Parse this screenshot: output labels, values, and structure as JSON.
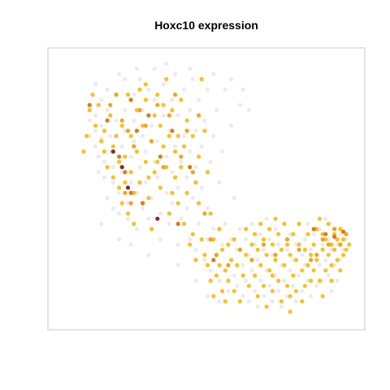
{
  "chart_data": {
    "type": "scatter",
    "title": "Hoxc10 expression",
    "xlabel": "",
    "ylabel": "",
    "axes_shown": false,
    "grid": false,
    "legend": "none",
    "xlim": [
      0,
      100
    ],
    "ylim": [
      0,
      100
    ],
    "colors": {
      "none": "#ebebeb",
      "low": "#fcbf20",
      "mid": "#f5a21c",
      "high": "#e2781a",
      "max": "#8b2a2a",
      "frame": "#c8c8c8"
    },
    "grey_points": [
      [
        10,
        81
      ],
      [
        10,
        76
      ],
      [
        10,
        70
      ],
      [
        12,
        78
      ],
      [
        12,
        72
      ],
      [
        12,
        66
      ],
      [
        13,
        62
      ],
      [
        13,
        56
      ],
      [
        14,
        84
      ],
      [
        14,
        74
      ],
      [
        14,
        69
      ],
      [
        15,
        60
      ],
      [
        15,
        54
      ],
      [
        16,
        88
      ],
      [
        16,
        80
      ],
      [
        16,
        46
      ],
      [
        17,
        70
      ],
      [
        17,
        64
      ],
      [
        18,
        58
      ],
      [
        18,
        52
      ],
      [
        18,
        42
      ],
      [
        19,
        76
      ],
      [
        19,
        86
      ],
      [
        20,
        48
      ],
      [
        20,
        40
      ],
      [
        21,
        66
      ],
      [
        21,
        56
      ],
      [
        22,
        92
      ],
      [
        22,
        80
      ],
      [
        22,
        72
      ],
      [
        23,
        44
      ],
      [
        23,
        38
      ],
      [
        24,
        62
      ],
      [
        24,
        52
      ],
      [
        25,
        86
      ],
      [
        25,
        76
      ],
      [
        25,
        68
      ],
      [
        26,
        48
      ],
      [
        26,
        34
      ],
      [
        27,
        92
      ],
      [
        27,
        58
      ],
      [
        28,
        80
      ],
      [
        28,
        70
      ],
      [
        28,
        42
      ],
      [
        29,
        64
      ],
      [
        29,
        52
      ],
      [
        30,
        88
      ],
      [
        30,
        38
      ],
      [
        31,
        74
      ],
      [
        31,
        46
      ],
      [
        32,
        96
      ],
      [
        32,
        84
      ],
      [
        32,
        60
      ],
      [
        33,
        68
      ],
      [
        33,
        54
      ],
      [
        34,
        40
      ],
      [
        34,
        30
      ],
      [
        35,
        90
      ],
      [
        35,
        78
      ],
      [
        36,
        62
      ],
      [
        36,
        48
      ],
      [
        37,
        72
      ],
      [
        37,
        36
      ],
      [
        38,
        84
      ],
      [
        38,
        56
      ],
      [
        38,
        44
      ],
      [
        39,
        94
      ],
      [
        39,
        66
      ],
      [
        40,
        78
      ],
      [
        40,
        50
      ],
      [
        40,
        28
      ],
      [
        41,
        60
      ],
      [
        41,
        38
      ],
      [
        42,
        88
      ],
      [
        42,
        70
      ],
      [
        43,
        54
      ],
      [
        43,
        42
      ],
      [
        44,
        80
      ],
      [
        44,
        64
      ],
      [
        44,
        30
      ],
      [
        45,
        92
      ],
      [
        45,
        46
      ],
      [
        46,
        72
      ],
      [
        46,
        58
      ],
      [
        46,
        26
      ],
      [
        47,
        84
      ],
      [
        47,
        36
      ],
      [
        48,
        66
      ],
      [
        48,
        50
      ],
      [
        49,
        76
      ],
      [
        49,
        22
      ],
      [
        50,
        88
      ],
      [
        50,
        42
      ],
      [
        50,
        30
      ],
      [
        51,
        60
      ],
      [
        51,
        18
      ],
      [
        52,
        70
      ],
      [
        52,
        34
      ],
      [
        53,
        80
      ],
      [
        53,
        24
      ],
      [
        54,
        52
      ],
      [
        54,
        14
      ],
      [
        55,
        64
      ],
      [
        55,
        28
      ],
      [
        56,
        88
      ],
      [
        56,
        36
      ],
      [
        57,
        20
      ],
      [
        57,
        10
      ],
      [
        58,
        74
      ],
      [
        58,
        30
      ],
      [
        59,
        46
      ],
      [
        59,
        16
      ],
      [
        60,
        26
      ],
      [
        60,
        12
      ],
      [
        61,
        82
      ],
      [
        61,
        34
      ],
      [
        62,
        20
      ],
      [
        62,
        8
      ],
      [
        63,
        30
      ],
      [
        63,
        14
      ],
      [
        64,
        24
      ],
      [
        64,
        6
      ],
      [
        65,
        36
      ],
      [
        65,
        18
      ],
      [
        66,
        28
      ],
      [
        66,
        10
      ],
      [
        67,
        22
      ],
      [
        67,
        4
      ],
      [
        68,
        32
      ],
      [
        68,
        14
      ],
      [
        69,
        26
      ],
      [
        69,
        8
      ],
      [
        70,
        38
      ],
      [
        70,
        18
      ],
      [
        71,
        30
      ],
      [
        71,
        12
      ],
      [
        72,
        24
      ],
      [
        72,
        6
      ],
      [
        73,
        34
      ],
      [
        73,
        16
      ],
      [
        74,
        28
      ],
      [
        74,
        10
      ],
      [
        75,
        20
      ],
      [
        75,
        4
      ],
      [
        76,
        36
      ],
      [
        76,
        14
      ],
      [
        77,
        26
      ],
      [
        77,
        8
      ],
      [
        78,
        32
      ],
      [
        78,
        18
      ],
      [
        79,
        22
      ],
      [
        79,
        12
      ],
      [
        80,
        28
      ],
      [
        80,
        6
      ],
      [
        81,
        36
      ],
      [
        81,
        16
      ],
      [
        82,
        24
      ],
      [
        82,
        10
      ],
      [
        83,
        30
      ],
      [
        83,
        20
      ],
      [
        84,
        36
      ],
      [
        84,
        14
      ],
      [
        85,
        26
      ],
      [
        85,
        8
      ],
      [
        86,
        32
      ],
      [
        86,
        18
      ],
      [
        87,
        24
      ],
      [
        87,
        12
      ],
      [
        88,
        34
      ],
      [
        88,
        20
      ],
      [
        89,
        28
      ],
      [
        89,
        14
      ],
      [
        90,
        38
      ],
      [
        90,
        22
      ],
      [
        91,
        30
      ],
      [
        91,
        16
      ],
      [
        92,
        26
      ],
      [
        92,
        10
      ],
      [
        93,
        34
      ],
      [
        93,
        20
      ],
      [
        94,
        28
      ],
      [
        94,
        14
      ],
      [
        95,
        22
      ],
      [
        95,
        32
      ],
      [
        96,
        26
      ],
      [
        97,
        30
      ],
      [
        12,
        90
      ],
      [
        20,
        94
      ],
      [
        26,
        96
      ],
      [
        36,
        98
      ],
      [
        44,
        96
      ],
      [
        52,
        94
      ],
      [
        58,
        92
      ],
      [
        62,
        88
      ],
      [
        64,
        80
      ],
      [
        20,
        30
      ],
      [
        24,
        28
      ],
      [
        30,
        24
      ],
      [
        14,
        36
      ],
      [
        40,
        20
      ],
      [
        46,
        14
      ],
      [
        50,
        8
      ],
      [
        54,
        6
      ]
    ],
    "low_points": [
      [
        10,
        80
      ],
      [
        8,
        64
      ],
      [
        9,
        70
      ],
      [
        11,
        86
      ],
      [
        12,
        74
      ],
      [
        13,
        82
      ],
      [
        14,
        68
      ],
      [
        15,
        72
      ],
      [
        15,
        64
      ],
      [
        16,
        58
      ],
      [
        17,
        78
      ],
      [
        18,
        66
      ],
      [
        18,
        54
      ],
      [
        19,
        70
      ],
      [
        20,
        60
      ],
      [
        20,
        50
      ],
      [
        21,
        74
      ],
      [
        21,
        44
      ],
      [
        22,
        62
      ],
      [
        22,
        52
      ],
      [
        23,
        86
      ],
      [
        23,
        40
      ],
      [
        24,
        70
      ],
      [
        24,
        56
      ],
      [
        25,
        48
      ],
      [
        25,
        36
      ],
      [
        26,
        80
      ],
      [
        26,
        64
      ],
      [
        27,
        88
      ],
      [
        27,
        52
      ],
      [
        28,
        74
      ],
      [
        28,
        44
      ],
      [
        29,
        84
      ],
      [
        29,
        60
      ],
      [
        29,
        90
      ],
      [
        30,
        54
      ],
      [
        30,
        46
      ],
      [
        31,
        68
      ],
      [
        31,
        34
      ],
      [
        32,
        78
      ],
      [
        32,
        56
      ],
      [
        33,
        60
      ],
      [
        33,
        86
      ],
      [
        34,
        74
      ],
      [
        34,
        50
      ],
      [
        35,
        82
      ],
      [
        35,
        66
      ],
      [
        36,
        92
      ],
      [
        36,
        58
      ],
      [
        37,
        70
      ],
      [
        37,
        40
      ],
      [
        38,
        80
      ],
      [
        38,
        48
      ],
      [
        39,
        64
      ],
      [
        39,
        54
      ],
      [
        40,
        70
      ],
      [
        40,
        44
      ],
      [
        41,
        84
      ],
      [
        41,
        58
      ],
      [
        42,
        66
      ],
      [
        42,
        36
      ],
      [
        43,
        76
      ],
      [
        43,
        48
      ],
      [
        44,
        58
      ],
      [
        44,
        28
      ],
      [
        45,
        70
      ],
      [
        45,
        32
      ],
      [
        46,
        52
      ],
      [
        46,
        22
      ],
      [
        47,
        62
      ],
      [
        47,
        44
      ],
      [
        48,
        92
      ],
      [
        48,
        30
      ],
      [
        49,
        72
      ],
      [
        49,
        24
      ],
      [
        50,
        56
      ],
      [
        50,
        20
      ],
      [
        51,
        40
      ],
      [
        51,
        14
      ],
      [
        52,
        30
      ],
      [
        52,
        8
      ],
      [
        53,
        24
      ],
      [
        53,
        16
      ],
      [
        54,
        34
      ],
      [
        54,
        20
      ],
      [
        55,
        26
      ],
      [
        55,
        10
      ],
      [
        56,
        18
      ],
      [
        56,
        6
      ],
      [
        57,
        28
      ],
      [
        57,
        14
      ],
      [
        58,
        22
      ],
      [
        59,
        30
      ],
      [
        59,
        10
      ],
      [
        60,
        20
      ],
      [
        61,
        26
      ],
      [
        61,
        6
      ],
      [
        62,
        16
      ],
      [
        63,
        24
      ],
      [
        63,
        34
      ],
      [
        64,
        12
      ],
      [
        65,
        28
      ],
      [
        65,
        22
      ],
      [
        66,
        32
      ],
      [
        66,
        16
      ],
      [
        67,
        8
      ],
      [
        67,
        26
      ],
      [
        68,
        20
      ],
      [
        68,
        36
      ],
      [
        69,
        12
      ],
      [
        69,
        30
      ],
      [
        70,
        24
      ],
      [
        70,
        4
      ],
      [
        71,
        18
      ],
      [
        71,
        34
      ],
      [
        72,
        10
      ],
      [
        72,
        28
      ],
      [
        73,
        22
      ],
      [
        73,
        38
      ],
      [
        74,
        14
      ],
      [
        74,
        32
      ],
      [
        75,
        26
      ],
      [
        75,
        6
      ],
      [
        76,
        20
      ],
      [
        76,
        36
      ],
      [
        77,
        12
      ],
      [
        77,
        28
      ],
      [
        78,
        24
      ],
      [
        78,
        2
      ],
      [
        79,
        16
      ],
      [
        79,
        32
      ],
      [
        80,
        22
      ],
      [
        80,
        10
      ],
      [
        81,
        28
      ],
      [
        81,
        36
      ],
      [
        82,
        18
      ],
      [
        82,
        6
      ],
      [
        83,
        26
      ],
      [
        83,
        12
      ],
      [
        84,
        20
      ],
      [
        84,
        32
      ],
      [
        85,
        14
      ],
      [
        85,
        24
      ],
      [
        86,
        28
      ],
      [
        86,
        18
      ],
      [
        87,
        34
      ],
      [
        87,
        22
      ],
      [
        88,
        38
      ],
      [
        88,
        14
      ],
      [
        89,
        26
      ],
      [
        89,
        32
      ],
      [
        90,
        30
      ],
      [
        90,
        18
      ],
      [
        91,
        36
      ],
      [
        91,
        24
      ],
      [
        92,
        28
      ],
      [
        92,
        14
      ],
      [
        93,
        32
      ],
      [
        93,
        26
      ],
      [
        94,
        30
      ],
      [
        94,
        22
      ],
      [
        95,
        28
      ],
      [
        95,
        34
      ],
      [
        96,
        24
      ],
      [
        96,
        30
      ],
      [
        97,
        26
      ],
      [
        98,
        28
      ],
      [
        89,
        8
      ],
      [
        92,
        20
      ],
      [
        95,
        18
      ],
      [
        72,
        16
      ],
      [
        78,
        8
      ]
    ],
    "mid_points": [
      [
        17,
        82
      ],
      [
        19,
        86
      ],
      [
        21,
        76
      ],
      [
        23,
        72
      ],
      [
        25,
        66
      ],
      [
        27,
        80
      ],
      [
        29,
        74
      ],
      [
        31,
        68
      ],
      [
        33,
        82
      ],
      [
        35,
        58
      ],
      [
        37,
        78
      ],
      [
        39,
        86
      ],
      [
        41,
        62
      ],
      [
        43,
        72
      ],
      [
        45,
        56
      ],
      [
        47,
        78
      ],
      [
        49,
        40
      ],
      [
        51,
        30
      ],
      [
        53,
        24
      ],
      [
        57,
        20
      ],
      [
        61,
        26
      ],
      [
        65,
        22
      ],
      [
        69,
        28
      ],
      [
        73,
        24
      ],
      [
        77,
        30
      ],
      [
        81,
        26
      ],
      [
        85,
        22
      ],
      [
        89,
        30
      ],
      [
        93,
        34
      ],
      [
        95,
        28
      ],
      [
        97,
        32
      ],
      [
        91,
        28
      ],
      [
        87,
        24
      ],
      [
        24,
        44
      ],
      [
        22,
        48
      ]
    ],
    "high_points": [
      [
        10,
        82
      ],
      [
        16,
        76
      ],
      [
        20,
        62
      ],
      [
        24,
        84
      ],
      [
        26,
        72
      ],
      [
        22,
        56
      ],
      [
        24,
        48
      ],
      [
        28,
        44
      ],
      [
        30,
        78
      ],
      [
        34,
        62
      ],
      [
        38,
        72
      ],
      [
        44,
        58
      ],
      [
        40,
        36
      ],
      [
        52,
        22
      ],
      [
        86,
        34
      ],
      [
        90,
        32
      ],
      [
        93,
        31
      ],
      [
        96,
        33
      ]
    ],
    "max_points": [
      [
        18,
        64
      ],
      [
        21,
        58
      ],
      [
        23,
        50
      ],
      [
        33,
        38
      ]
    ]
  }
}
